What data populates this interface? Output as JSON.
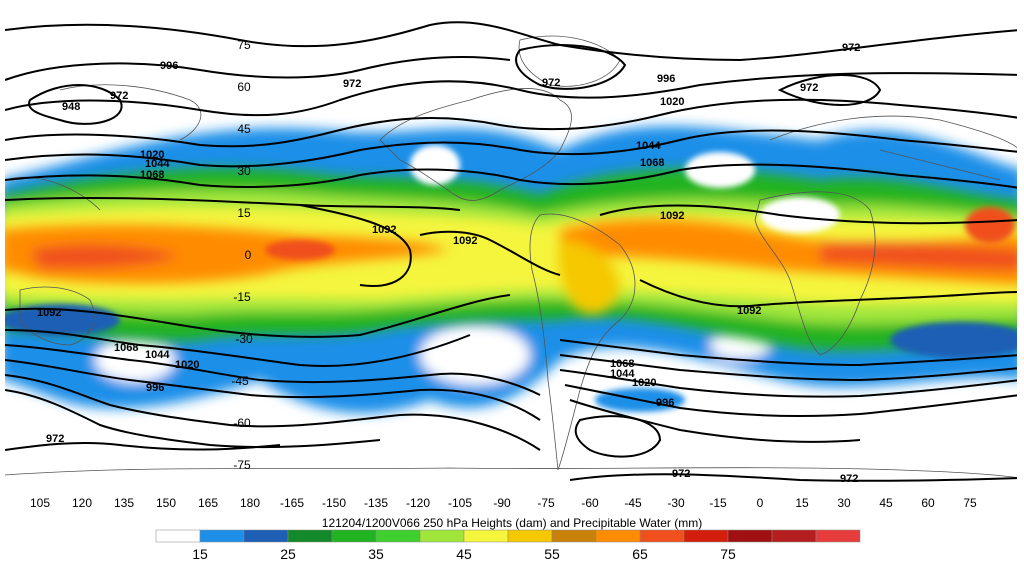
{
  "title": "121204/1200V066 250 hPa Heights (dam) and Precipitable Water (mm)",
  "longitude_labels": [
    "105",
    "120",
    "135",
    "150",
    "165",
    "180",
    "-165",
    "-150",
    "-135",
    "-120",
    "-105",
    "-90",
    "-75",
    "-60",
    "-45",
    "-30",
    "-15",
    "0",
    "15",
    "30",
    "45",
    "60",
    "75"
  ],
  "latitude_labels": [
    "75",
    "60",
    "45",
    "30",
    "15",
    "0",
    "-15",
    "-30",
    "-45",
    "-60",
    "-75"
  ],
  "legend": {
    "tick_labels": [
      "15",
      "25",
      "35",
      "45",
      "55",
      "65",
      "75"
    ],
    "colors": [
      "#ffffff",
      "#1e8fe8",
      "#1c5fb5",
      "#128a2a",
      "#21b321",
      "#3fd030",
      "#a0e63c",
      "#f5f53c",
      "#f5c800",
      "#c8820a",
      "#ff8c00",
      "#f0501e",
      "#d21e0a",
      "#a01010",
      "#b41e1e",
      "#e63c3c"
    ]
  },
  "contour_labels": [
    "948",
    "972",
    "996",
    "1020",
    "1044",
    "1068",
    "1092"
  ],
  "map_data": {
    "projection": "cylindrical equidistant",
    "lon_range": [
      95,
      85
    ],
    "lat_range": [
      -90,
      90
    ],
    "contour_label_values": [
      {
        "text": "948"
      },
      {
        "text": "972"
      },
      {
        "text": "996"
      },
      {
        "text": "972"
      },
      {
        "text": "972"
      },
      {
        "text": "996"
      },
      {
        "text": "1020"
      },
      {
        "text": "972"
      },
      {
        "text": "972"
      },
      {
        "text": "1020"
      },
      {
        "text": "1044"
      },
      {
        "text": "1068"
      },
      {
        "text": "1044"
      },
      {
        "text": "1068"
      },
      {
        "text": "1092"
      },
      {
        "text": "1092"
      },
      {
        "text": "1092"
      },
      {
        "text": "1092"
      },
      {
        "text": "1092"
      },
      {
        "text": "1068"
      },
      {
        "text": "1044"
      },
      {
        "text": "1020"
      },
      {
        "text": "996"
      },
      {
        "text": "1068"
      },
      {
        "text": "1044"
      },
      {
        "text": "1020"
      },
      {
        "text": "996"
      },
      {
        "text": "972"
      },
      {
        "text": "972"
      },
      {
        "text": "972"
      }
    ]
  }
}
